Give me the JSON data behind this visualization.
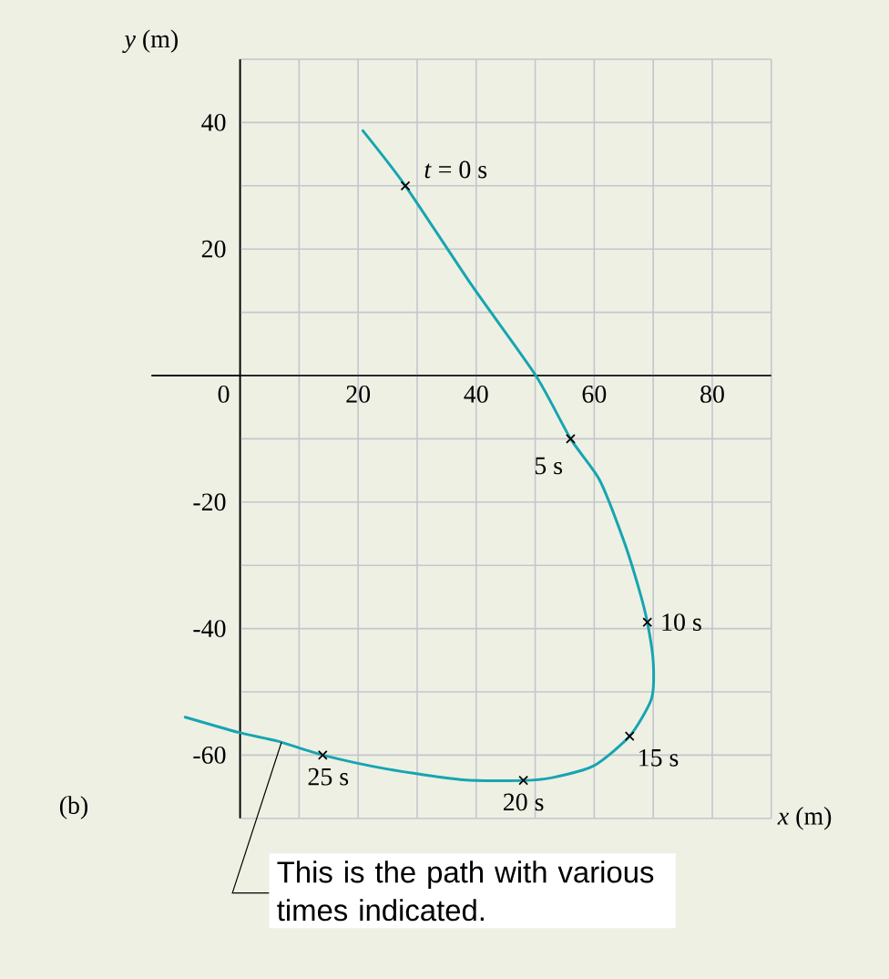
{
  "chart_data": {
    "type": "line",
    "xlabel": "*x* (m)",
    "ylabel": "*y* (m)",
    "xlim": [
      -15,
      90
    ],
    "ylim": [
      -70,
      50
    ],
    "xticks": [
      0,
      {
        "value": 10,
        "label": null
      },
      20,
      {
        "value": 30,
        "label": null
      },
      40,
      {
        "value": 50,
        "label": null
      },
      60,
      {
        "value": 70,
        "label": null
      },
      80,
      {
        "value": 90,
        "label": null
      }
    ],
    "yticks": [
      {
        "value": -70,
        "label": null
      },
      -60,
      {
        "value": -50,
        "label": null
      },
      -40,
      {
        "value": -30,
        "label": null
      },
      -20,
      {
        "value": -10,
        "label": null
      },
      {
        "value": 0,
        "label": null
      },
      {
        "value": 10,
        "label": null
      },
      20,
      {
        "value": 30,
        "label": null
      },
      40,
      {
        "value": 50,
        "label": null
      }
    ],
    "grid": true,
    "series": [
      {
        "color": "#16a5b0",
        "marker": "none",
        "x": [
          20.8,
          28,
          39.3,
          50.1,
          56,
          60.9,
          65,
          67.6,
          69,
          70,
          69.7,
          66,
          59.9,
          52.7,
          48,
          37.8,
          24.9,
          14,
          6.4,
          -0.3,
          -9.3
        ],
        "values": [
          38.7,
          30,
          14.2,
          0,
          -10,
          -16.5,
          -26.1,
          -33.8,
          -39,
          -45.3,
          -51.1,
          -57,
          -61.7,
          -63.6,
          -64,
          -63.9,
          -62.2,
          -60,
          -57.8,
          -56.4,
          -54
        ]
      },
      {
        "type": "scatter",
        "color": "#000000",
        "marker": "cross",
        "x": [
          28,
          56,
          69,
          66,
          48,
          14
        ],
        "values": [
          30,
          -10,
          -39,
          -57,
          -64,
          -60
        ]
      }
    ],
    "annotations": [
      {
        "text": "*t* = 0 s",
        "x": 28,
        "y": 30
      },
      {
        "text": "5 s",
        "x": 56,
        "y": -10
      },
      {
        "text": "10 s",
        "x": 69,
        "y": -39
      },
      {
        "text": "15 s",
        "x": 66,
        "y": -57
      },
      {
        "text": "20 s",
        "x": 48,
        "y": -64
      },
      {
        "text": "25 s",
        "x": 14,
        "y": -60
      },
      {
        "text": "This is the path with various times indicated.",
        "x": 7,
        "y": -58
      },
      "(b)"
    ]
  }
}
